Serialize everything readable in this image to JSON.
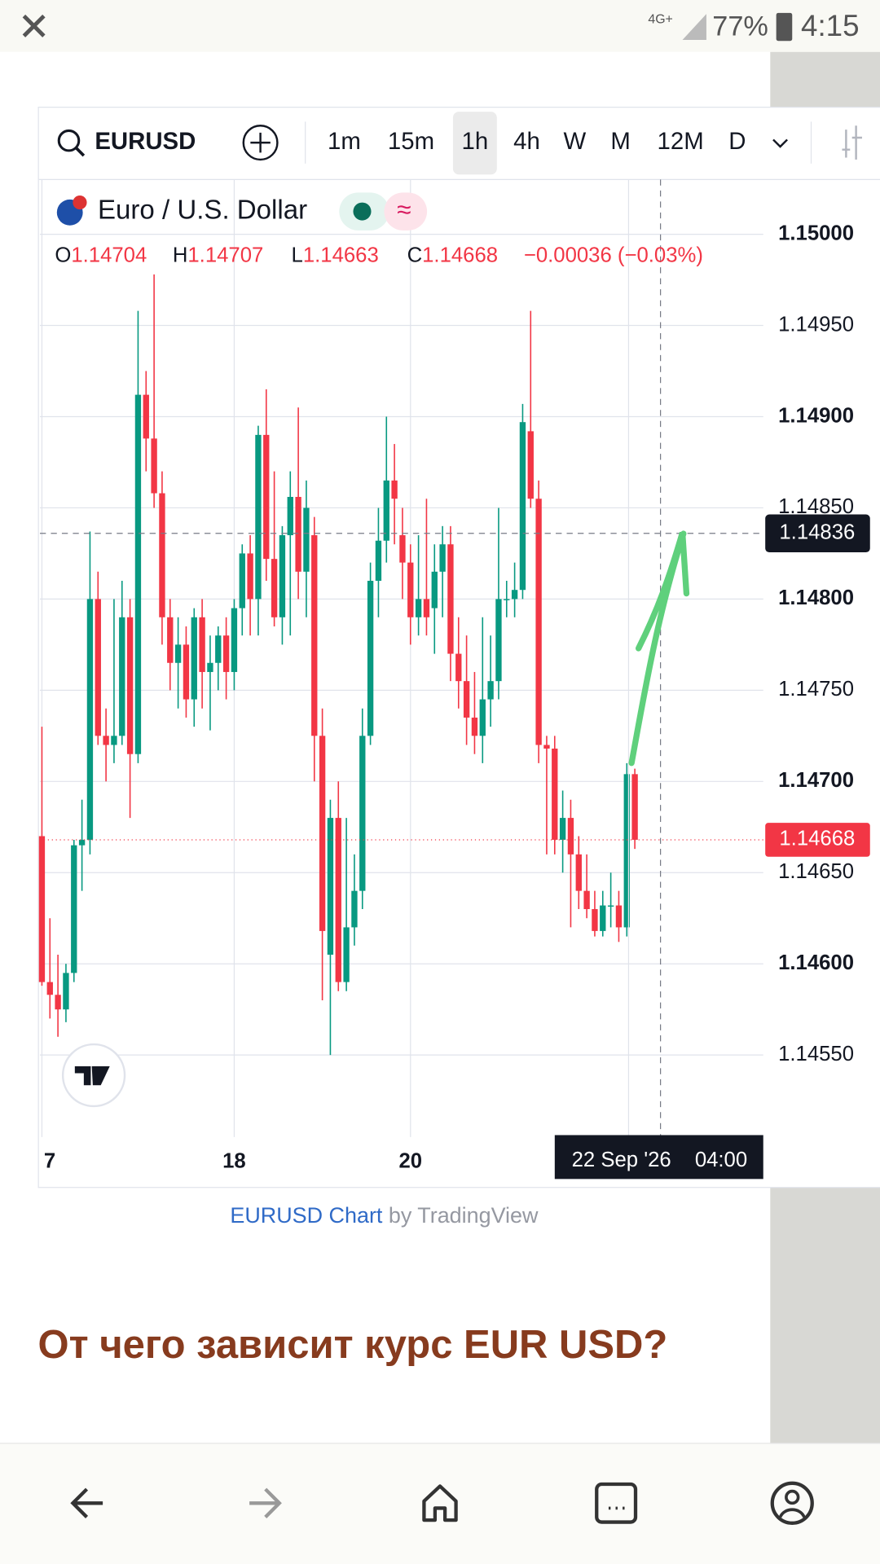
{
  "status_bar": {
    "network": "4G+",
    "battery": "77%",
    "time": "4:15"
  },
  "toolbar": {
    "symbol": "EURUSD",
    "intervals": [
      "1m",
      "15m",
      "1h",
      "4h",
      "W",
      "M",
      "12M",
      "D"
    ],
    "active_interval": "1h"
  },
  "chart_data": {
    "type": "candlestick",
    "title": "Euro / U.S. Dollar",
    "ohlc": [
      {
        "key": "O",
        "value": 1.14704
      },
      {
        "key": "H",
        "value": 1.14707
      },
      {
        "key": "L",
        "value": 1.14663
      },
      {
        "key": "C",
        "value": 1.14668
      }
    ],
    "change": "−0.00036 (−0.03%)",
    "up_color": "#089981",
    "down_color": "#f23645",
    "grid": true,
    "candles": [
      {
        "o": 1.1467,
        "h": 1.1473,
        "l": 1.14588,
        "c": 1.1459
      },
      {
        "o": 1.1459,
        "h": 1.14625,
        "l": 1.1457,
        "c": 1.14583
      },
      {
        "o": 1.14583,
        "h": 1.14605,
        "l": 1.1456,
        "c": 1.14575
      },
      {
        "o": 1.14575,
        "h": 1.146,
        "l": 1.14568,
        "c": 1.14595
      },
      {
        "o": 1.14595,
        "h": 1.14668,
        "l": 1.1459,
        "c": 1.14665
      },
      {
        "o": 1.14665,
        "h": 1.1469,
        "l": 1.1464,
        "c": 1.14668
      },
      {
        "o": 1.14668,
        "h": 1.14837,
        "l": 1.1466,
        "c": 1.148
      },
      {
        "o": 1.148,
        "h": 1.14815,
        "l": 1.1472,
        "c": 1.14725
      },
      {
        "o": 1.14725,
        "h": 1.1474,
        "l": 1.147,
        "c": 1.1472
      },
      {
        "o": 1.1472,
        "h": 1.148,
        "l": 1.1471,
        "c": 1.14725
      },
      {
        "o": 1.14725,
        "h": 1.1481,
        "l": 1.1472,
        "c": 1.1479
      },
      {
        "o": 1.1479,
        "h": 1.148,
        "l": 1.1468,
        "c": 1.14715
      },
      {
        "o": 1.14715,
        "h": 1.14958,
        "l": 1.1471,
        "c": 1.14912
      },
      {
        "o": 1.14912,
        "h": 1.14925,
        "l": 1.1487,
        "c": 1.14888
      },
      {
        "o": 1.14888,
        "h": 1.14978,
        "l": 1.1485,
        "c": 1.14858
      },
      {
        "o": 1.14858,
        "h": 1.1487,
        "l": 1.14775,
        "c": 1.1479
      },
      {
        "o": 1.1479,
        "h": 1.148,
        "l": 1.1475,
        "c": 1.14765
      },
      {
        "o": 1.14765,
        "h": 1.1479,
        "l": 1.1474,
        "c": 1.14775
      },
      {
        "o": 1.14775,
        "h": 1.14785,
        "l": 1.14735,
        "c": 1.14745
      },
      {
        "o": 1.14745,
        "h": 1.14795,
        "l": 1.1473,
        "c": 1.1479
      },
      {
        "o": 1.1479,
        "h": 1.148,
        "l": 1.1474,
        "c": 1.1476
      },
      {
        "o": 1.1476,
        "h": 1.1478,
        "l": 1.14728,
        "c": 1.14765
      },
      {
        "o": 1.14765,
        "h": 1.14785,
        "l": 1.1475,
        "c": 1.1478
      },
      {
        "o": 1.1478,
        "h": 1.1479,
        "l": 1.14745,
        "c": 1.1476
      },
      {
        "o": 1.1476,
        "h": 1.148,
        "l": 1.1475,
        "c": 1.14795
      },
      {
        "o": 1.14795,
        "h": 1.1483,
        "l": 1.1478,
        "c": 1.14825
      },
      {
        "o": 1.14825,
        "h": 1.14835,
        "l": 1.1478,
        "c": 1.148
      },
      {
        "o": 1.148,
        "h": 1.14895,
        "l": 1.1478,
        "c": 1.1489
      },
      {
        "o": 1.1489,
        "h": 1.14915,
        "l": 1.1481,
        "c": 1.14822
      },
      {
        "o": 1.14822,
        "h": 1.1487,
        "l": 1.14785,
        "c": 1.1479
      },
      {
        "o": 1.1479,
        "h": 1.1484,
        "l": 1.14775,
        "c": 1.14835
      },
      {
        "o": 1.14835,
        "h": 1.1487,
        "l": 1.1478,
        "c": 1.14856
      },
      {
        "o": 1.14856,
        "h": 1.14905,
        "l": 1.148,
        "c": 1.14815
      },
      {
        "o": 1.14815,
        "h": 1.14865,
        "l": 1.1479,
        "c": 1.1485
      },
      {
        "o": 1.14835,
        "h": 1.14845,
        "l": 1.147,
        "c": 1.14725
      },
      {
        "o": 1.14725,
        "h": 1.1474,
        "l": 1.1458,
        "c": 1.14618
      },
      {
        "o": 1.14605,
        "h": 1.1469,
        "l": 1.1455,
        "c": 1.1468
      },
      {
        "o": 1.1468,
        "h": 1.147,
        "l": 1.14585,
        "c": 1.1459
      },
      {
        "o": 1.1459,
        "h": 1.1468,
        "l": 1.14585,
        "c": 1.1462
      },
      {
        "o": 1.1462,
        "h": 1.1466,
        "l": 1.1461,
        "c": 1.1464
      },
      {
        "o": 1.1464,
        "h": 1.1474,
        "l": 1.1463,
        "c": 1.14725
      },
      {
        "o": 1.14725,
        "h": 1.1482,
        "l": 1.1472,
        "c": 1.1481
      },
      {
        "o": 1.1481,
        "h": 1.1485,
        "l": 1.1479,
        "c": 1.14832
      },
      {
        "o": 1.14832,
        "h": 1.149,
        "l": 1.1482,
        "c": 1.14865
      },
      {
        "o": 1.14865,
        "h": 1.14885,
        "l": 1.1483,
        "c": 1.14855
      },
      {
        "o": 1.14835,
        "h": 1.1485,
        "l": 1.148,
        "c": 1.1482
      },
      {
        "o": 1.1482,
        "h": 1.1483,
        "l": 1.14775,
        "c": 1.1479
      },
      {
        "o": 1.1479,
        "h": 1.14835,
        "l": 1.1478,
        "c": 1.148
      },
      {
        "o": 1.148,
        "h": 1.14855,
        "l": 1.1478,
        "c": 1.1479
      },
      {
        "o": 1.14795,
        "h": 1.1483,
        "l": 1.1477,
        "c": 1.14815
      },
      {
        "o": 1.14815,
        "h": 1.1484,
        "l": 1.1479,
        "c": 1.1483
      },
      {
        "o": 1.1483,
        "h": 1.1484,
        "l": 1.14755,
        "c": 1.1477
      },
      {
        "o": 1.1477,
        "h": 1.1479,
        "l": 1.1474,
        "c": 1.14755
      },
      {
        "o": 1.14755,
        "h": 1.1478,
        "l": 1.1472,
        "c": 1.14735
      },
      {
        "o": 1.14735,
        "h": 1.1476,
        "l": 1.14715,
        "c": 1.14725
      },
      {
        "o": 1.14725,
        "h": 1.1479,
        "l": 1.1471,
        "c": 1.14745
      },
      {
        "o": 1.14745,
        "h": 1.1478,
        "l": 1.1473,
        "c": 1.14755
      },
      {
        "o": 1.14755,
        "h": 1.1485,
        "l": 1.14745,
        "c": 1.148
      },
      {
        "o": 1.148,
        "h": 1.1481,
        "l": 1.1479,
        "c": 1.148
      },
      {
        "o": 1.148,
        "h": 1.1482,
        "l": 1.1479,
        "c": 1.14805
      },
      {
        "o": 1.14805,
        "h": 1.14907,
        "l": 1.148,
        "c": 1.14897
      },
      {
        "o": 1.14892,
        "h": 1.14958,
        "l": 1.1485,
        "c": 1.14855
      },
      {
        "o": 1.14855,
        "h": 1.14865,
        "l": 1.1471,
        "c": 1.1472
      },
      {
        "o": 1.1472,
        "h": 1.14725,
        "l": 1.1466,
        "c": 1.14718
      },
      {
        "o": 1.14718,
        "h": 1.14725,
        "l": 1.1466,
        "c": 1.14668
      },
      {
        "o": 1.14668,
        "h": 1.14695,
        "l": 1.1465,
        "c": 1.1468
      },
      {
        "o": 1.1468,
        "h": 1.1469,
        "l": 1.1462,
        "c": 1.1466
      },
      {
        "o": 1.1466,
        "h": 1.1467,
        "l": 1.1463,
        "c": 1.1464
      },
      {
        "o": 1.1464,
        "h": 1.1466,
        "l": 1.14625,
        "c": 1.1463
      },
      {
        "o": 1.1463,
        "h": 1.1464,
        "l": 1.14615,
        "c": 1.14618
      },
      {
        "o": 1.14618,
        "h": 1.1464,
        "l": 1.14615,
        "c": 1.14632
      },
      {
        "o": 1.14632,
        "h": 1.1465,
        "l": 1.1462,
        "c": 1.14632
      },
      {
        "o": 1.14632,
        "h": 1.1464,
        "l": 1.14612,
        "c": 1.1462
      },
      {
        "o": 1.1462,
        "h": 1.1471,
        "l": 1.14615,
        "c": 1.14704
      },
      {
        "o": 1.14704,
        "h": 1.14707,
        "l": 1.14663,
        "c": 1.14668
      }
    ],
    "xlim": [
      -0.25,
      90.03
    ],
    "xticks": [
      {
        "value": 0,
        "label": "7"
      },
      {
        "value": 24,
        "label": "18"
      },
      {
        "value": 46,
        "label": "20"
      }
    ],
    "ylim": [
      1.14505,
      1.1503
    ],
    "yticks": [
      {
        "value": 1.1455,
        "label": "1.14550"
      },
      {
        "value": 1.146,
        "label": "1.14600"
      },
      {
        "value": 1.1465,
        "label": "1.14650"
      },
      {
        "value": 1.147,
        "label": "1.14700"
      },
      {
        "value": 1.1475,
        "label": "1.14750"
      },
      {
        "value": 1.148,
        "label": "1.14800"
      },
      {
        "value": 1.1485,
        "label": "1.14850"
      },
      {
        "value": 1.149,
        "label": "1.14900"
      },
      {
        "value": 1.1495,
        "label": "1.14950"
      },
      {
        "value": 1.15,
        "label": "1.15000"
      }
    ],
    "last_price": 1.14668,
    "crosshair": {
      "price": 1.14836,
      "date": "22 Sep '26",
      "time": "04:00"
    }
  },
  "credit": {
    "link": "EURUSD Chart",
    "by": "by TradingView"
  },
  "article": {
    "heading": "От чего зависит курс EUR USD?"
  }
}
